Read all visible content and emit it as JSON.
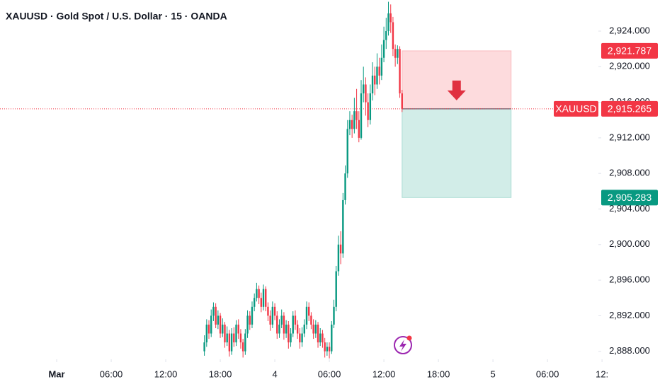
{
  "chart_data": {
    "type": "candlestick",
    "title": "XAUUSD · Gold Spot / U.S. Dollar · 15 · OANDA",
    "symbol": "XAUUSD",
    "up_color": "#089981",
    "down_color": "#f23645",
    "xlim": [
      -24.94,
      238.4
    ],
    "xticks": [
      {
        "value": 0,
        "label": "Mar"
      },
      {
        "value": 24,
        "label": "06:00"
      },
      {
        "value": 48,
        "label": "12:00"
      },
      {
        "value": 72,
        "label": "18:00"
      },
      {
        "value": 96,
        "label": "4"
      },
      {
        "value": 120,
        "label": "06:00"
      },
      {
        "value": 144,
        "label": "12:00"
      },
      {
        "value": 168,
        "label": "18:00"
      },
      {
        "value": 192,
        "label": "5"
      },
      {
        "value": 216,
        "label": "06:00"
      },
      {
        "value": 240,
        "label": "12:"
      }
    ],
    "ylim": [
      2887.1,
      2927.5
    ],
    "yticks": [
      {
        "value": 2888,
        "label": "2,888.000"
      },
      {
        "value": 2892,
        "label": "2,892.000"
      },
      {
        "value": 2896,
        "label": "2,896.000"
      },
      {
        "value": 2900,
        "label": "2,900.000"
      },
      {
        "value": 2904,
        "label": "2,904.000"
      },
      {
        "value": 2908,
        "label": "2,908.000"
      },
      {
        "value": 2912,
        "label": "2,912.000"
      },
      {
        "value": 2916,
        "label": "2,916.000"
      },
      {
        "value": 2920,
        "label": "2,920.000"
      },
      {
        "value": 2924,
        "label": "2,924.000"
      }
    ],
    "x": [
      65,
      66,
      67,
      68,
      69,
      70,
      71,
      72,
      73,
      74,
      75,
      76,
      77,
      78,
      79,
      80,
      81,
      82,
      83,
      84,
      85,
      86,
      87,
      88,
      89,
      90,
      91,
      92,
      93,
      94,
      95,
      96,
      97,
      98,
      99,
      100,
      101,
      102,
      103,
      104,
      105,
      106,
      107,
      108,
      109,
      110,
      111,
      112,
      113,
      114,
      115,
      116,
      117,
      118,
      119,
      120,
      121,
      122,
      123,
      124,
      125,
      126,
      127,
      128,
      129,
      130,
      131,
      132,
      133,
      134,
      135,
      136,
      137,
      138,
      139,
      140,
      141,
      142,
      143,
      144,
      145,
      146,
      147,
      148,
      149,
      150,
      151,
      152
    ],
    "ohlc": [
      [
        2888,
        2889.8,
        2887.5,
        2889
      ],
      [
        2889,
        2891.6,
        2888.5,
        2891
      ],
      [
        2891,
        2891.5,
        2889.4,
        2890
      ],
      [
        2890,
        2892.7,
        2889.6,
        2892
      ],
      [
        2892,
        2893.5,
        2891.4,
        2893
      ],
      [
        2893,
        2893.4,
        2890.6,
        2891
      ],
      [
        2891,
        2892.6,
        2890.5,
        2892
      ],
      [
        2892,
        2892.3,
        2889.5,
        2890
      ],
      [
        2890,
        2891.7,
        2889.6,
        2891
      ],
      [
        2891,
        2891.3,
        2888.4,
        2889
      ],
      [
        2889,
        2890.8,
        2888.6,
        2890
      ],
      [
        2890,
        2890.4,
        2887.4,
        2888
      ],
      [
        2888,
        2890.6,
        2887.6,
        2890
      ],
      [
        2890,
        2890.7,
        2888.5,
        2889
      ],
      [
        2889,
        2891.5,
        2888.6,
        2891
      ],
      [
        2891,
        2891.6,
        2889.4,
        2890
      ],
      [
        2890,
        2890.5,
        2888.3,
        2889
      ],
      [
        2889,
        2889.4,
        2887.3,
        2888
      ],
      [
        2888,
        2890.5,
        2887.6,
        2890
      ],
      [
        2890,
        2892.6,
        2889.5,
        2892
      ],
      [
        2892,
        2892.5,
        2890.4,
        2891
      ],
      [
        2891,
        2893.6,
        2890.6,
        2893
      ],
      [
        2893,
        2894.5,
        2892.5,
        2894
      ],
      [
        2894,
        2895.7,
        2893.6,
        2895
      ],
      [
        2895,
        2895.4,
        2893.3,
        2894
      ],
      [
        2894,
        2894.6,
        2892.4,
        2893
      ],
      [
        2893,
        2895.5,
        2892.6,
        2895
      ],
      [
        2895,
        2895.3,
        2892.5,
        2893
      ],
      [
        2893,
        2893.5,
        2891.4,
        2892
      ],
      [
        2892,
        2892.6,
        2890.3,
        2891
      ],
      [
        2891,
        2893.6,
        2890.6,
        2893
      ],
      [
        2893,
        2893.4,
        2891.5,
        2892
      ],
      [
        2892,
        2892.5,
        2889.4,
        2890
      ],
      [
        2890,
        2891.6,
        2889.5,
        2891
      ],
      [
        2891,
        2892.7,
        2890.6,
        2892
      ],
      [
        2892,
        2892.4,
        2889.3,
        2890
      ],
      [
        2890,
        2891.5,
        2889.5,
        2891
      ],
      [
        2891,
        2891.4,
        2888.3,
        2889
      ],
      [
        2889,
        2890.6,
        2888.5,
        2890
      ],
      [
        2890,
        2892.5,
        2889.6,
        2892
      ],
      [
        2892,
        2892.6,
        2890.4,
        2891
      ],
      [
        2891,
        2891.5,
        2889.4,
        2890
      ],
      [
        2890,
        2890.6,
        2888.3,
        2889
      ],
      [
        2889,
        2890.7,
        2888.5,
        2890
      ],
      [
        2890,
        2891.6,
        2889.6,
        2891
      ],
      [
        2891,
        2893.6,
        2890.5,
        2893
      ],
      [
        2893,
        2893.5,
        2891.4,
        2892
      ],
      [
        2892,
        2892.4,
        2890.5,
        2891
      ],
      [
        2891,
        2891.6,
        2889.4,
        2890
      ],
      [
        2890,
        2891.5,
        2889.5,
        2891
      ],
      [
        2891,
        2891.3,
        2888.4,
        2889
      ],
      [
        2889,
        2890.6,
        2888.6,
        2890
      ],
      [
        2890,
        2890.4,
        2888.4,
        2889
      ],
      [
        2889,
        2889.5,
        2887.3,
        2888
      ],
      [
        2888,
        2889,
        2887.5,
        2888.5
      ],
      [
        2888.5,
        2889,
        2887.2,
        2888
      ],
      [
        2888,
        2891.4,
        2887.7,
        2891
      ],
      [
        2891,
        2893.8,
        2890.6,
        2893
      ],
      [
        2893,
        2897.6,
        2892.5,
        2897
      ],
      [
        2897,
        2901,
        2896.5,
        2900
      ],
      [
        2900,
        2901.5,
        2897.8,
        2899
      ],
      [
        2899,
        2905.8,
        2898.5,
        2905
      ],
      [
        2905,
        2908.9,
        2904.5,
        2908
      ],
      [
        2908,
        2914,
        2907.5,
        2913
      ],
      [
        2913,
        2915,
        2912.3,
        2914
      ],
      [
        2914,
        2914.6,
        2912,
        2913
      ],
      [
        2913,
        2916.5,
        2912.5,
        2915
      ],
      [
        2915,
        2917.5,
        2913,
        2914
      ],
      [
        2914,
        2915,
        2911.5,
        2912
      ],
      [
        2912,
        2918.5,
        2911.8,
        2917
      ],
      [
        2917,
        2920,
        2916,
        2918
      ],
      [
        2918,
        2918.8,
        2914.5,
        2916
      ],
      [
        2916,
        2917,
        2913.2,
        2914
      ],
      [
        2914,
        2918,
        2913.5,
        2917
      ],
      [
        2917,
        2920.5,
        2916.2,
        2919
      ],
      [
        2919,
        2920,
        2916.8,
        2918
      ],
      [
        2918,
        2921.5,
        2917.5,
        2920
      ],
      [
        2920,
        2921,
        2918,
        2919
      ],
      [
        2919,
        2922.5,
        2918.5,
        2921
      ],
      [
        2921,
        2924.5,
        2920.5,
        2923
      ],
      [
        2923,
        2925.5,
        2922,
        2924
      ],
      [
        2924,
        2927.3,
        2923.5,
        2926
      ],
      [
        2926,
        2927,
        2923.8,
        2925
      ],
      [
        2925,
        2925.6,
        2921.2,
        2922
      ],
      [
        2922,
        2922.5,
        2920,
        2921
      ],
      [
        2921,
        2922.4,
        2920.3,
        2922
      ],
      [
        2922,
        2922.3,
        2916.5,
        2917
      ],
      [
        2917,
        2917.4,
        2914.9,
        2915.265
      ]
    ],
    "position": {
      "x_range": [
        152,
        200
      ],
      "stop": {
        "value": 2921.787,
        "label": "2,921.787"
      },
      "entry": {
        "value": 2915.265,
        "label": "2,915.265"
      },
      "target": {
        "value": 2905.283,
        "label": "2,905.283"
      }
    }
  }
}
